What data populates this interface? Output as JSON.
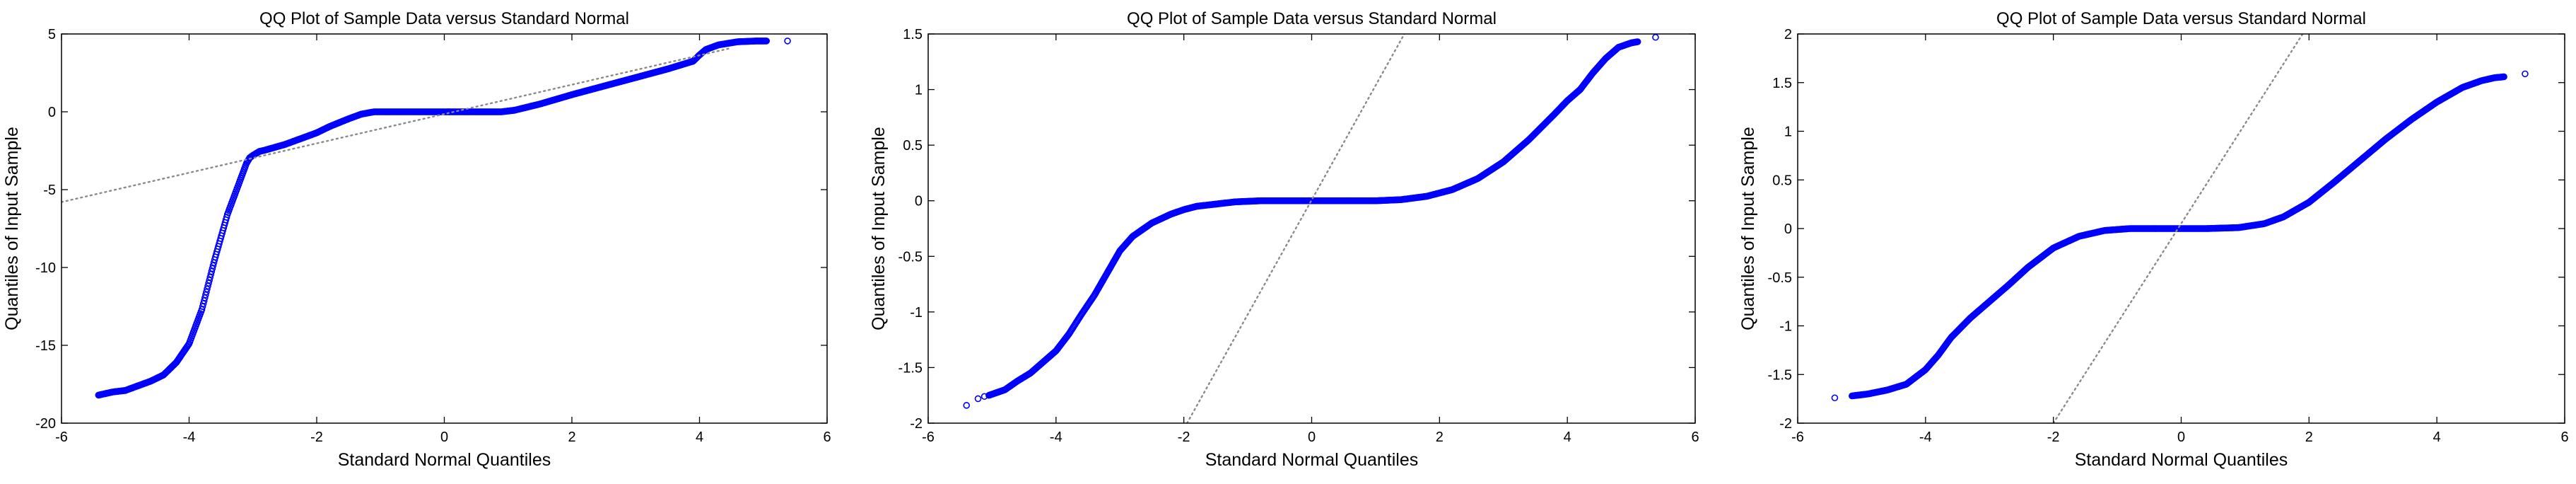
{
  "colors": {
    "points": "#0000ff",
    "reference_line": "#8a8a8a",
    "axes": "#000000",
    "background": "#ffffff"
  },
  "chart_data": [
    {
      "type": "scatter",
      "title": "QQ Plot of Sample Data versus Standard Normal",
      "xlabel": "Standard Normal Quantiles",
      "ylabel": "Quantiles of Input Sample",
      "xlim": [
        -6,
        6
      ],
      "ylim": [
        -20,
        5
      ],
      "xticks": [
        -6,
        -4,
        -2,
        0,
        2,
        4,
        6
      ],
      "yticks": [
        -20,
        -15,
        -10,
        -5,
        0,
        5
      ],
      "xtick_labels": [
        "-6",
        "-4",
        "-2",
        "0",
        "2",
        "4",
        "6"
      ],
      "ytick_labels": [
        "-20",
        "-15",
        "-10",
        "-5",
        "0",
        "5"
      ],
      "grid": false,
      "series": [
        {
          "style": "marker-curve",
          "x": [
            -5.42,
            -5.2,
            -5.0,
            -4.8,
            -4.6,
            -4.4,
            -4.2,
            -4.0,
            -3.8,
            -3.6,
            -3.4,
            -3.2,
            -3.1,
            -3.05,
            -3.0,
            -2.9,
            -2.8,
            -2.5,
            -2.2,
            -2.0,
            -1.8,
            -1.5,
            -1.3,
            -1.1,
            -0.6,
            0.0,
            0.5,
            0.9,
            1.1,
            1.5,
            2.0,
            2.5,
            3.0,
            3.5,
            3.9,
            4.0,
            4.1,
            4.3,
            4.6,
            4.9,
            5.05
          ],
          "y": [
            -18.2,
            -18.0,
            -17.9,
            -17.6,
            -17.3,
            -16.9,
            -16.1,
            -14.9,
            -12.7,
            -9.5,
            -6.6,
            -4.4,
            -3.3,
            -2.95,
            -2.8,
            -2.55,
            -2.45,
            -2.1,
            -1.65,
            -1.35,
            -0.95,
            -0.45,
            -0.15,
            0.0,
            0.0,
            0.0,
            0.0,
            0.0,
            0.1,
            0.5,
            1.1,
            1.65,
            2.2,
            2.75,
            3.25,
            3.65,
            4.0,
            4.3,
            4.5,
            4.55,
            4.55
          ]
        },
        {
          "style": "outlier-markers",
          "x": [
            5.38
          ],
          "y": [
            4.55
          ]
        },
        {
          "style": "reference-line",
          "x": [
            -6,
            4.5
          ],
          "y": [
            -5.8,
            4.1
          ]
        }
      ]
    },
    {
      "type": "scatter",
      "title": "QQ Plot of Sample Data versus Standard Normal",
      "xlabel": "Standard Normal Quantiles",
      "ylabel": "Quantiles of Input Sample",
      "xlim": [
        -6,
        6
      ],
      "ylim": [
        -2,
        1.5
      ],
      "xticks": [
        -6,
        -4,
        -2,
        0,
        2,
        4,
        6
      ],
      "yticks": [
        -2,
        -1.5,
        -1,
        -0.5,
        0,
        0.5,
        1,
        1.5
      ],
      "xtick_labels": [
        "-6",
        "-4",
        "-2",
        "0",
        "2",
        "4",
        "6"
      ],
      "ytick_labels": [
        "-2",
        "-1.5",
        "-1",
        "-0.5",
        "0",
        "0.5",
        "1",
        "1.5"
      ],
      "grid": false,
      "series": [
        {
          "style": "marker-curve",
          "x": [
            -5.05,
            -4.8,
            -4.6,
            -4.4,
            -4.2,
            -4.0,
            -3.8,
            -3.6,
            -3.4,
            -3.2,
            -3.0,
            -2.8,
            -2.5,
            -2.2,
            -2.0,
            -1.8,
            -1.5,
            -1.2,
            -0.8,
            0.0,
            0.6,
            1.0,
            1.4,
            1.8,
            2.2,
            2.6,
            3.0,
            3.4,
            3.8,
            4.0,
            4.2,
            4.4,
            4.6,
            4.8,
            5.0,
            5.1
          ],
          "y": [
            -1.75,
            -1.7,
            -1.62,
            -1.55,
            -1.45,
            -1.35,
            -1.2,
            -1.02,
            -0.85,
            -0.65,
            -0.45,
            -0.32,
            -0.2,
            -0.12,
            -0.08,
            -0.05,
            -0.03,
            -0.01,
            0.0,
            0.0,
            0.0,
            0.0,
            0.01,
            0.04,
            0.1,
            0.2,
            0.35,
            0.55,
            0.78,
            0.9,
            1.0,
            1.15,
            1.28,
            1.38,
            1.42,
            1.43
          ]
        },
        {
          "style": "outlier-markers",
          "x": [
            -5.4,
            -5.22,
            -5.12,
            5.38
          ],
          "y": [
            -1.84,
            -1.78,
            -1.76,
            1.47
          ]
        },
        {
          "style": "reference-line",
          "x": [
            -1.95,
            1.45
          ],
          "y": [
            -2,
            1.5
          ]
        }
      ]
    },
    {
      "type": "scatter",
      "title": "QQ Plot of Sample Data versus Standard Normal",
      "xlabel": "Standard Normal Quantiles",
      "ylabel": "Quantiles of Input Sample",
      "xlim": [
        -6,
        6
      ],
      "ylim": [
        -2,
        2
      ],
      "xticks": [
        -6,
        -4,
        -2,
        0,
        2,
        4,
        6
      ],
      "yticks": [
        -2,
        -1.5,
        -1,
        -0.5,
        0,
        0.5,
        1,
        1.5,
        2
      ],
      "xtick_labels": [
        "-6",
        "-4",
        "-2",
        "0",
        "2",
        "4",
        "6"
      ],
      "ytick_labels": [
        "-2",
        "-1.5",
        "-1",
        "-0.5",
        "0",
        "0.5",
        "1",
        "1.5",
        "2"
      ],
      "grid": false,
      "series": [
        {
          "style": "marker-curve",
          "x": [
            -5.15,
            -4.9,
            -4.6,
            -4.3,
            -4.0,
            -3.8,
            -3.6,
            -3.3,
            -3.0,
            -2.7,
            -2.4,
            -2.0,
            -1.6,
            -1.2,
            -0.8,
            -0.3,
            0.4,
            0.9,
            1.3,
            1.6,
            2.0,
            2.4,
            2.8,
            3.2,
            3.6,
            4.0,
            4.4,
            4.7,
            4.9,
            5.05
          ],
          "y": [
            -1.72,
            -1.7,
            -1.66,
            -1.6,
            -1.45,
            -1.3,
            -1.12,
            -0.92,
            -0.75,
            -0.58,
            -0.4,
            -0.2,
            -0.08,
            -0.02,
            0.0,
            0.0,
            0.0,
            0.01,
            0.05,
            0.12,
            0.27,
            0.48,
            0.7,
            0.92,
            1.12,
            1.3,
            1.45,
            1.52,
            1.55,
            1.56
          ]
        },
        {
          "style": "outlier-markers",
          "x": [
            -5.42,
            5.38
          ],
          "y": [
            -1.74,
            1.59
          ]
        },
        {
          "style": "reference-line",
          "x": [
            -2.0,
            1.9
          ],
          "y": [
            -2,
            2
          ]
        }
      ]
    }
  ]
}
